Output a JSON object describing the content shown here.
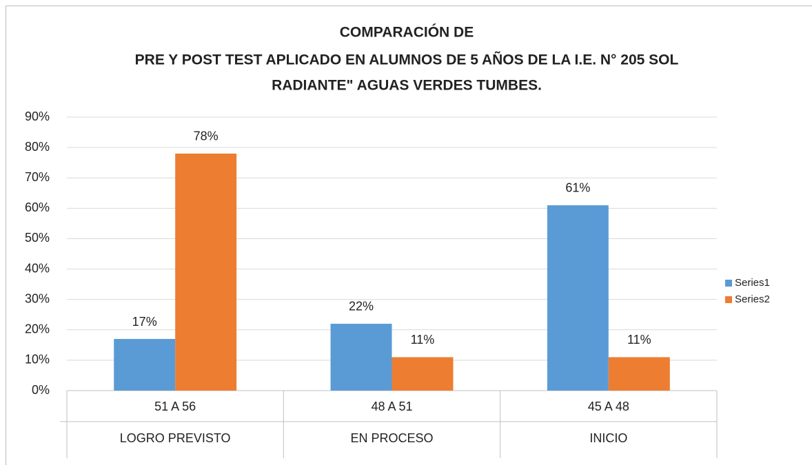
{
  "chart_data": {
    "type": "bar",
    "title": [
      "COMPARACIÓN DE",
      "PRE Y POST TEST APLICADO EN ALUMNOS DE 5 AÑOS DE LA I.E. N° 205 SOL",
      "RADIANTE\" AGUAS VERDES TUMBES."
    ],
    "categories": [
      "51 A 56",
      "48 A 51",
      "45 A 48"
    ],
    "category_groups": [
      "LOGRO PREVISTO",
      "EN PROCESO",
      "INICIO"
    ],
    "series": [
      {
        "name": "Series1",
        "color": "#5b9bd5",
        "values": [
          17,
          22,
          61
        ],
        "value_labels": [
          "17%",
          "22%",
          "61%"
        ]
      },
      {
        "name": "Series2",
        "color": "#ed7d31",
        "values": [
          78,
          11,
          11
        ],
        "value_labels": [
          "78%",
          "11%",
          "11%"
        ]
      }
    ],
    "ylim": [
      0,
      90
    ],
    "yticks": [
      {
        "value": 0,
        "label": "0%"
      },
      {
        "value": 10,
        "label": "10%"
      },
      {
        "value": 20,
        "label": "20%"
      },
      {
        "value": 30,
        "label": "30%"
      },
      {
        "value": 40,
        "label": "40%"
      },
      {
        "value": 50,
        "label": "50%"
      },
      {
        "value": 60,
        "label": "60%"
      },
      {
        "value": 70,
        "label": "70%"
      },
      {
        "value": 80,
        "label": "80%"
      },
      {
        "value": 90,
        "label": "90%"
      }
    ],
    "grid": true,
    "legend": "right"
  }
}
